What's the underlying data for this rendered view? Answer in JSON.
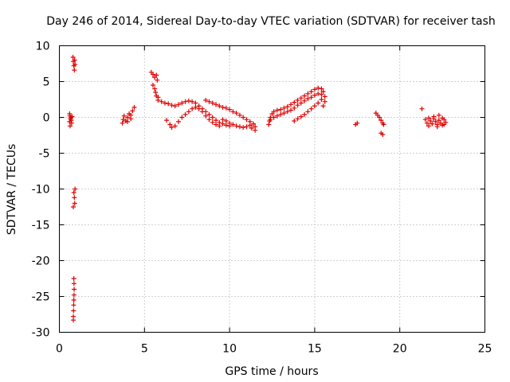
{
  "chart_data": {
    "type": "scatter",
    "title": "Day 246 of 2014, Sidereal Day-to-day VTEC variation (SDTVAR) for receiver tash",
    "xlabel": "GPS time / hours",
    "ylabel": "SDTVAR / TECUs",
    "xlim": [
      0,
      25
    ],
    "ylim": [
      -30,
      10
    ],
    "grid": true,
    "marker": "+",
    "color": "#e00000",
    "x_ticks": [
      0,
      5,
      10,
      15,
      20,
      25
    ],
    "y_ticks": [
      10,
      5,
      0,
      -5,
      -10,
      -15,
      -20,
      -25,
      -30
    ],
    "series": [
      {
        "name": "tash",
        "points": [
          [
            0.6,
            0.5
          ],
          [
            0.62,
            0.2
          ],
          [
            0.65,
            -0.2
          ],
          [
            0.6,
            -0.6
          ],
          [
            0.63,
            -1.2
          ],
          [
            0.68,
            0.0
          ],
          [
            0.7,
            -0.4
          ],
          [
            0.72,
            -0.8
          ],
          [
            0.75,
            0.1
          ],
          [
            0.8,
            8.4
          ],
          [
            0.82,
            7.8
          ],
          [
            0.85,
            7.2
          ],
          [
            0.88,
            6.6
          ],
          [
            0.9,
            8.0
          ],
          [
            0.92,
            7.4
          ],
          [
            0.85,
            -10.5
          ],
          [
            0.88,
            -11.2
          ],
          [
            0.9,
            -12.0
          ],
          [
            0.82,
            -12.5
          ],
          [
            0.92,
            -10.0
          ],
          [
            0.85,
            -22.5
          ],
          [
            0.86,
            -23.2
          ],
          [
            0.87,
            -24.0
          ],
          [
            0.86,
            -24.8
          ],
          [
            0.85,
            -25.5
          ],
          [
            0.84,
            -26.2
          ],
          [
            0.83,
            -27.0
          ],
          [
            0.82,
            -27.8
          ],
          [
            0.82,
            -28.3
          ],
          [
            3.7,
            -0.8
          ],
          [
            3.75,
            -0.3
          ],
          [
            3.8,
            0.2
          ],
          [
            3.9,
            -0.5
          ],
          [
            4.0,
            0.0
          ],
          [
            4.1,
            0.5
          ],
          [
            4.2,
            0.3
          ],
          [
            4.3,
            0.9
          ],
          [
            4.4,
            1.4
          ],
          [
            4.0,
            -0.6
          ],
          [
            4.2,
            -0.2
          ],
          [
            5.4,
            6.3
          ],
          [
            5.5,
            6.0
          ],
          [
            5.6,
            5.6
          ],
          [
            5.7,
            5.9
          ],
          [
            5.75,
            5.2
          ],
          [
            5.5,
            4.5
          ],
          [
            5.6,
            4.0
          ],
          [
            5.65,
            3.5
          ],
          [
            5.7,
            3.0
          ],
          [
            5.8,
            2.8
          ],
          [
            5.8,
            2.4
          ],
          [
            6.0,
            2.2
          ],
          [
            6.2,
            2.0
          ],
          [
            6.4,
            1.9
          ],
          [
            6.6,
            1.7
          ],
          [
            6.8,
            1.6
          ],
          [
            7.0,
            1.8
          ],
          [
            7.2,
            2.0
          ],
          [
            7.4,
            2.2
          ],
          [
            7.6,
            2.3
          ],
          [
            7.8,
            2.2
          ],
          [
            8.0,
            2.0
          ],
          [
            8.2,
            1.6
          ],
          [
            8.4,
            1.2
          ],
          [
            8.6,
            0.8
          ],
          [
            8.8,
            0.4
          ],
          [
            9.0,
            0.0
          ],
          [
            9.2,
            -0.4
          ],
          [
            9.4,
            -0.7
          ],
          [
            9.6,
            -0.9
          ],
          [
            9.8,
            -1.1
          ],
          [
            10.0,
            -1.2
          ],
          [
            6.3,
            -0.4
          ],
          [
            6.5,
            -1.0
          ],
          [
            6.6,
            -1.4
          ],
          [
            6.8,
            -1.2
          ],
          [
            7.0,
            -0.6
          ],
          [
            7.2,
            0.0
          ],
          [
            7.4,
            0.4
          ],
          [
            7.6,
            0.8
          ],
          [
            7.8,
            1.2
          ],
          [
            8.0,
            1.4
          ],
          [
            8.2,
            1.2
          ],
          [
            8.4,
            0.8
          ],
          [
            8.6,
            0.2
          ],
          [
            8.8,
            -0.3
          ],
          [
            9.0,
            -0.7
          ],
          [
            9.2,
            -1.0
          ],
          [
            9.4,
            -1.2
          ],
          [
            8.6,
            2.4
          ],
          [
            8.8,
            2.2
          ],
          [
            9.0,
            2.0
          ],
          [
            9.2,
            1.8
          ],
          [
            9.4,
            1.6
          ],
          [
            9.6,
            1.4
          ],
          [
            9.8,
            1.3
          ],
          [
            10.0,
            1.1
          ],
          [
            10.2,
            0.8
          ],
          [
            10.4,
            0.6
          ],
          [
            10.6,
            0.3
          ],
          [
            10.8,
            0.0
          ],
          [
            11.0,
            -0.3
          ],
          [
            11.2,
            -0.6
          ],
          [
            11.4,
            -0.9
          ],
          [
            11.5,
            -1.3
          ],
          [
            11.5,
            -1.8
          ],
          [
            11.3,
            -1.5
          ],
          [
            9.6,
            -0.3
          ],
          [
            9.8,
            -0.5
          ],
          [
            10.0,
            -0.8
          ],
          [
            10.2,
            -1.0
          ],
          [
            10.4,
            -1.2
          ],
          [
            10.6,
            -1.3
          ],
          [
            10.8,
            -1.4
          ],
          [
            11.0,
            -1.3
          ],
          [
            11.2,
            -1.1
          ],
          [
            12.3,
            -1.0
          ],
          [
            12.35,
            -0.5
          ],
          [
            12.4,
            0.0
          ],
          [
            12.5,
            0.5
          ],
          [
            12.6,
            0.8
          ],
          [
            12.8,
            1.0
          ],
          [
            13.0,
            1.1
          ],
          [
            13.2,
            1.3
          ],
          [
            13.4,
            1.5
          ],
          [
            13.6,
            1.8
          ],
          [
            13.8,
            2.1
          ],
          [
            14.0,
            2.4
          ],
          [
            14.2,
            2.7
          ],
          [
            14.4,
            3.0
          ],
          [
            14.6,
            3.3
          ],
          [
            14.8,
            3.6
          ],
          [
            15.0,
            3.9
          ],
          [
            15.2,
            4.1
          ],
          [
            15.4,
            4.0
          ],
          [
            15.5,
            3.6
          ],
          [
            12.4,
            -0.3
          ],
          [
            12.6,
            0.0
          ],
          [
            12.8,
            0.2
          ],
          [
            13.0,
            0.4
          ],
          [
            13.2,
            0.6
          ],
          [
            13.4,
            0.8
          ],
          [
            13.6,
            1.0
          ],
          [
            13.8,
            1.3
          ],
          [
            14.0,
            1.7
          ],
          [
            14.2,
            2.0
          ],
          [
            14.4,
            2.3
          ],
          [
            14.6,
            2.6
          ],
          [
            14.8,
            2.8
          ],
          [
            15.0,
            3.1
          ],
          [
            15.2,
            3.3
          ],
          [
            15.4,
            3.2
          ],
          [
            13.8,
            -0.5
          ],
          [
            14.0,
            -0.2
          ],
          [
            14.2,
            0.1
          ],
          [
            14.4,
            0.4
          ],
          [
            14.6,
            0.8
          ],
          [
            14.8,
            1.2
          ],
          [
            15.0,
            1.6
          ],
          [
            15.2,
            2.0
          ],
          [
            15.4,
            2.5
          ],
          [
            15.6,
            2.9
          ],
          [
            15.6,
            2.2
          ],
          [
            15.5,
            1.6
          ],
          [
            17.4,
            -1.0
          ],
          [
            17.5,
            -0.8
          ],
          [
            18.6,
            0.6
          ],
          [
            18.7,
            0.3
          ],
          [
            18.8,
            0.0
          ],
          [
            18.9,
            -0.4
          ],
          [
            19.0,
            -0.8
          ],
          [
            19.05,
            -1.0
          ],
          [
            18.9,
            -2.2
          ],
          [
            19.0,
            -2.4
          ],
          [
            21.3,
            1.2
          ],
          [
            21.5,
            -0.3
          ],
          [
            21.6,
            -0.8
          ],
          [
            21.7,
            -1.2
          ],
          [
            21.8,
            -0.5
          ],
          [
            21.9,
            -0.9
          ],
          [
            22.0,
            -0.2
          ],
          [
            22.1,
            -0.6
          ],
          [
            22.2,
            -1.0
          ],
          [
            22.3,
            -0.4
          ],
          [
            22.4,
            -0.8
          ],
          [
            22.5,
            -1.1
          ],
          [
            22.6,
            -0.3
          ],
          [
            22.7,
            -0.7
          ],
          [
            22.0,
            0.1
          ],
          [
            22.3,
            0.3
          ],
          [
            22.5,
            -0.1
          ],
          [
            21.7,
            -0.1
          ],
          [
            22.2,
            -1.3
          ],
          [
            22.6,
            -1.0
          ]
        ]
      }
    ]
  }
}
